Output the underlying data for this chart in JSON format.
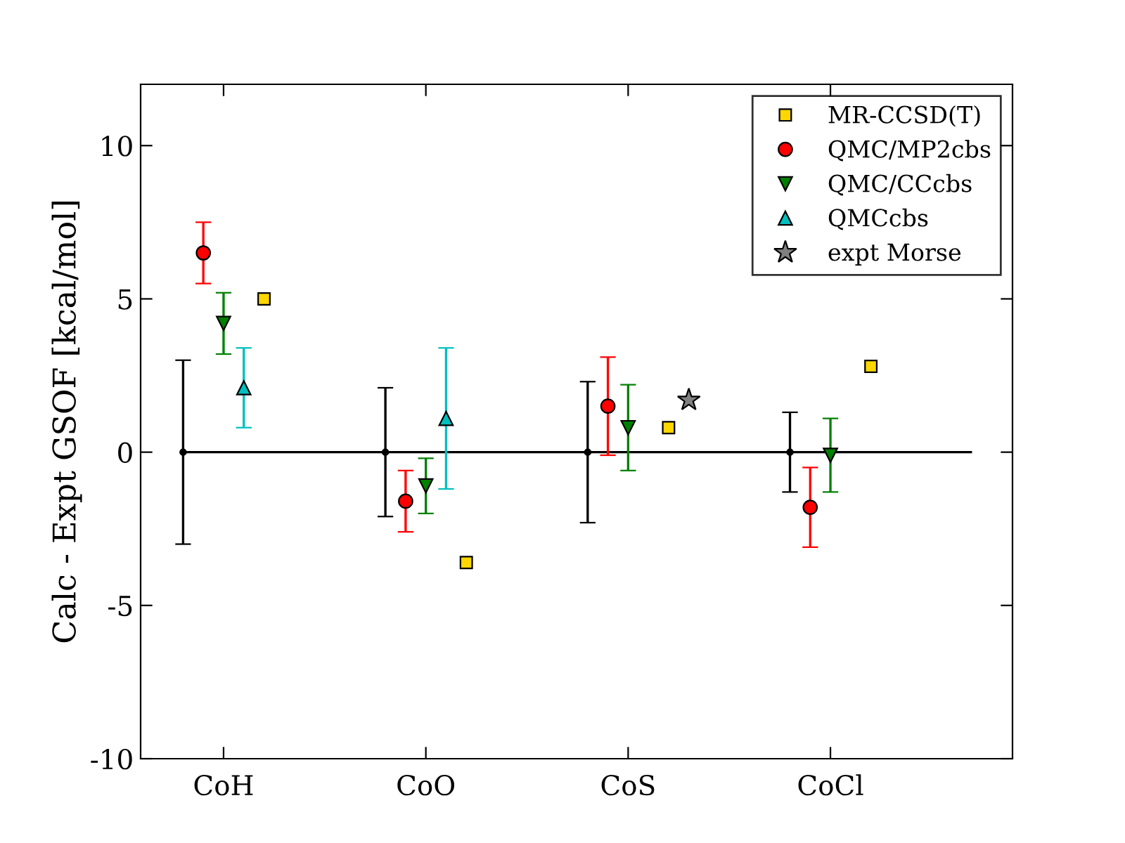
{
  "chart_data": {
    "type": "scatter",
    "ylabel": "Calc - Expt GSOF [kcal/mol]",
    "categories": [
      "CoH",
      "CoO",
      "CoS",
      "CoCl"
    ],
    "ylim": [
      -10,
      12
    ],
    "yticks": [
      -10,
      -5,
      0,
      5,
      10
    ],
    "grid": false,
    "legend": "top right",
    "ref_lines": [
      {
        "axis": "y",
        "value": 0,
        "color": "#000000"
      }
    ],
    "series": [
      {
        "name": "MR-CCSD(T)",
        "marker": "square",
        "color": "#ffd700",
        "x": [
          "CoH",
          "CoO",
          "CoS",
          "CoCl"
        ],
        "values": [
          5.0,
          -3.6,
          0.8,
          2.8
        ]
      },
      {
        "name": "QMC/MP2cbs",
        "marker": "circle",
        "color": "#ff0000",
        "x": [
          "CoH",
          "CoO",
          "CoS",
          "CoCl"
        ],
        "values": [
          6.5,
          -1.6,
          1.5,
          -1.8
        ],
        "errors": [
          1.0,
          1.0,
          1.6,
          1.3
        ]
      },
      {
        "name": "QMC/CCcbs",
        "marker": "triangle_down",
        "color": "#008000",
        "x": [
          "CoH",
          "CoO",
          "CoS",
          "CoCl"
        ],
        "values": [
          4.2,
          -1.1,
          0.8,
          -0.1
        ],
        "errors": [
          1.0,
          0.9,
          1.4,
          1.2
        ]
      },
      {
        "name": "QMCcbs",
        "marker": "triangle",
        "color": "#00bfbf",
        "x": [
          "CoH",
          "CoO"
        ],
        "values": [
          2.1,
          1.1
        ],
        "errors": [
          1.3,
          2.3
        ]
      },
      {
        "name": "expt Morse",
        "marker": "star",
        "color": "#808080",
        "x": [
          "CoS"
        ],
        "values": [
          1.7
        ]
      },
      {
        "marker": "circle",
        "color": "#000000",
        "x": [
          "CoH",
          "CoO",
          "CoS",
          "CoCl"
        ],
        "values": [
          0,
          0,
          0,
          0
        ],
        "errors": [
          3.0,
          2.1,
          2.3,
          1.3
        ]
      }
    ]
  }
}
